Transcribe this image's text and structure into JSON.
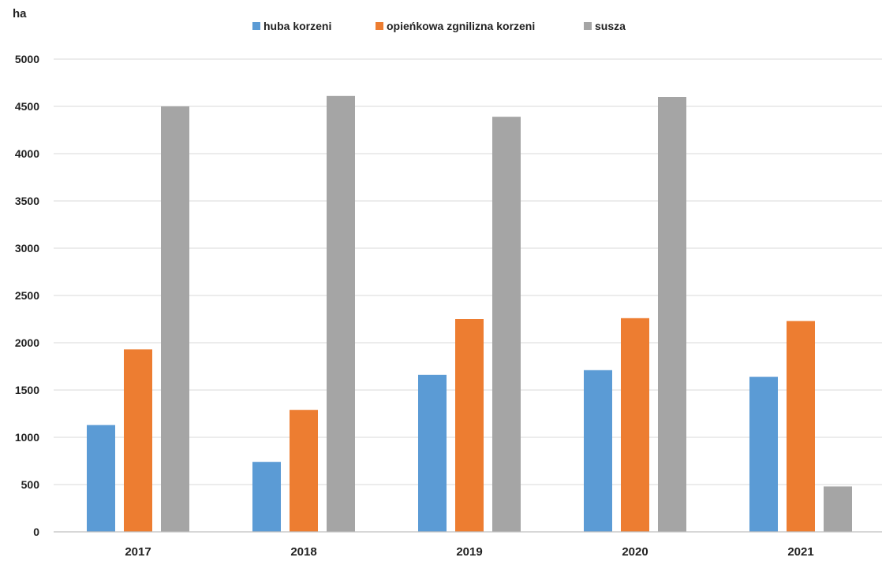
{
  "chart_data": {
    "type": "bar",
    "title": "",
    "xlabel": "",
    "ylabel": "ha",
    "ylim": [
      0,
      5000
    ],
    "yticks": [
      0,
      500,
      1000,
      1500,
      2000,
      2500,
      3000,
      3500,
      4000,
      4500,
      5000
    ],
    "grid": true,
    "legend_position": "top-center",
    "categories": [
      "2017",
      "2018",
      "2019",
      "2020",
      "2021"
    ],
    "series": [
      {
        "name": "huba korzeni",
        "color": "#5b9bd5",
        "values": [
          1130,
          740,
          1660,
          1710,
          1640
        ]
      },
      {
        "name": "opieńkowa zgnilizna korzeni",
        "color": "#ed7d31",
        "values": [
          1930,
          1290,
          2250,
          2260,
          2230
        ]
      },
      {
        "name": "susza",
        "color": "#a5a5a5",
        "values": [
          4500,
          4610,
          4390,
          4600,
          480
        ]
      }
    ]
  }
}
